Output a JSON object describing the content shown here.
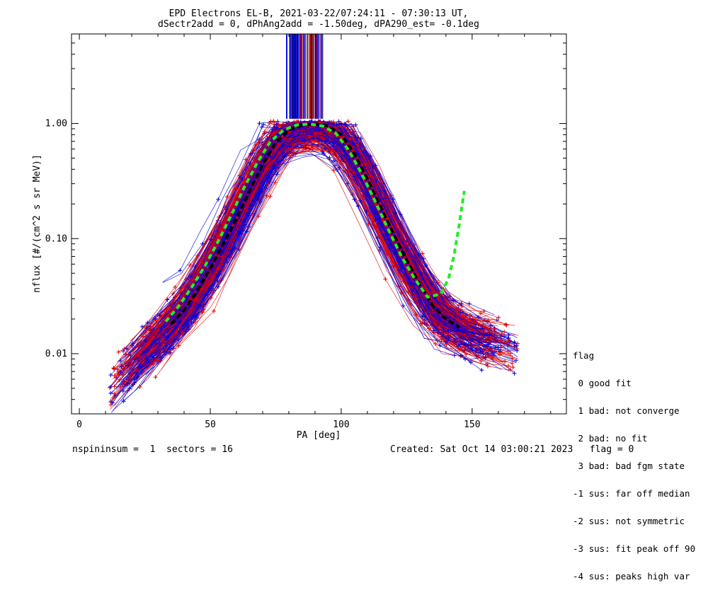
{
  "chart_data": {
    "type": "line",
    "title": "EPD Electrons EL-B, 2021-03-22/07:24:11 - 07:30:13 UT,",
    "subtitle": "dSectr2add = 0, dPhAng2add = -1.50deg, dPA290_est=  -0.1deg",
    "xlabel": "PA [deg]",
    "ylabel": "nflux [#/(cm^2 s sr MeV)]",
    "xlim": [
      -3,
      186
    ],
    "ylim": [
      0.003,
      6.0
    ],
    "y_scale": "log",
    "x_ticks": [
      "0",
      "50",
      "100",
      "150"
    ],
    "x_tick_values": [
      0,
      50,
      100,
      150
    ],
    "y_ticks": [
      "0.01",
      "0.10",
      "1.00"
    ],
    "y_tick_values": [
      0.01,
      0.1,
      1.0
    ],
    "grid": false,
    "series": [
      {
        "color": "#e00000",
        "style": "line+cross",
        "description_count": 160
      },
      {
        "color": "#0000e0",
        "style": "line+cross",
        "description_count": 160
      }
    ],
    "fit_curves": [
      {
        "color": "#000000",
        "style": "dashed",
        "x": [
          35,
          40,
          45,
          50,
          55,
          60,
          65,
          70,
          75,
          80,
          85,
          90,
          95,
          100,
          105,
          110,
          115,
          120,
          125,
          130,
          135,
          140,
          145
        ],
        "y": [
          0.018,
          0.024,
          0.035,
          0.055,
          0.09,
          0.15,
          0.26,
          0.44,
          0.68,
          0.88,
          0.97,
          0.99,
          0.95,
          0.8,
          0.55,
          0.33,
          0.19,
          0.11,
          0.065,
          0.04,
          0.026,
          0.02,
          0.017
        ]
      },
      {
        "color": "#22ee22",
        "style": "dashed",
        "x": [
          33,
          38,
          43,
          48,
          53,
          58,
          63,
          68,
          73,
          78,
          83,
          88,
          93,
          98,
          103,
          108,
          113,
          118,
          123,
          128,
          133,
          138,
          141,
          143,
          145,
          147
        ],
        "y": [
          0.019,
          0.026,
          0.038,
          0.058,
          0.095,
          0.16,
          0.28,
          0.46,
          0.7,
          0.88,
          0.97,
          0.99,
          0.95,
          0.82,
          0.58,
          0.36,
          0.21,
          0.12,
          0.07,
          0.045,
          0.031,
          0.033,
          0.045,
          0.07,
          0.13,
          0.26
        ]
      }
    ],
    "saturated_bars_x_range": [
      79,
      93
    ]
  },
  "legend": {
    "title": "flag",
    "items": [
      " 0 good fit",
      " 1 bad: not converge",
      " 2 bad: no fit",
      " 3 bad: bad fgm state",
      "-1 sus: far off median",
      "-2 sus: not symmetric",
      "-3 sus: fit peak off 90",
      "-4 sus: peaks high var"
    ]
  },
  "footer": {
    "left": "nspininsum =  1  sectors = 16",
    "right": "Created: Sat Oct 14 03:00:21 2023   flag = 0"
  },
  "colors": {
    "red": "#e00000",
    "blue": "#0000e0",
    "green": "#22ee22",
    "black": "#000000"
  }
}
